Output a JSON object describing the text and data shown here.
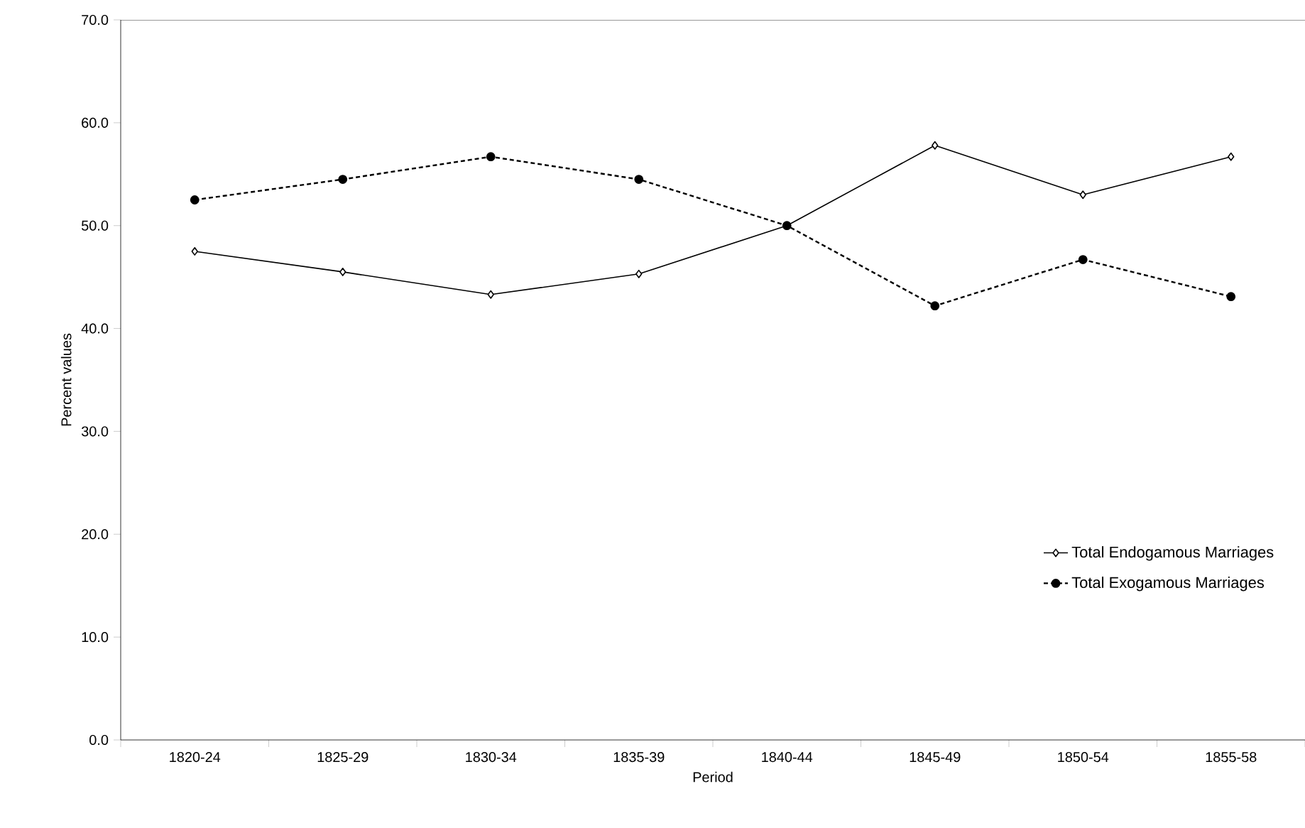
{
  "chart_data": {
    "type": "line",
    "xlabel": "Period",
    "ylabel": "Percent values",
    "categories": [
      "1820-24",
      "1825-29",
      "1830-34",
      "1835-39",
      "1840-44",
      "1845-49",
      "1850-54",
      "1855-58"
    ],
    "series": [
      {
        "name": "Total Endogamous Marriages",
        "color": "#000000",
        "marker": "diamond",
        "line_style": "solid",
        "values": [
          47.5,
          45.5,
          43.3,
          45.3,
          50.0,
          57.8,
          53.0,
          56.7
        ]
      },
      {
        "name": "Total Exogamous Marriages",
        "color": "#000000",
        "marker": "circle",
        "line_style": "dashed",
        "values": [
          52.5,
          54.5,
          56.7,
          54.5,
          50.0,
          42.2,
          46.7,
          43.1
        ]
      }
    ],
    "ylim": [
      0,
      70
    ],
    "yticks": [
      {
        "value": 0,
        "label": "0.0"
      },
      {
        "value": 10,
        "label": "10.0"
      },
      {
        "value": 20,
        "label": "20.0"
      },
      {
        "value": 30,
        "label": "30.0"
      },
      {
        "value": 40,
        "label": "40.0"
      },
      {
        "value": 50,
        "label": "50.0"
      },
      {
        "value": 60,
        "label": "60.0"
      },
      {
        "value": 70,
        "label": "70.0"
      }
    ],
    "legend": "bottom right",
    "grid": false
  }
}
